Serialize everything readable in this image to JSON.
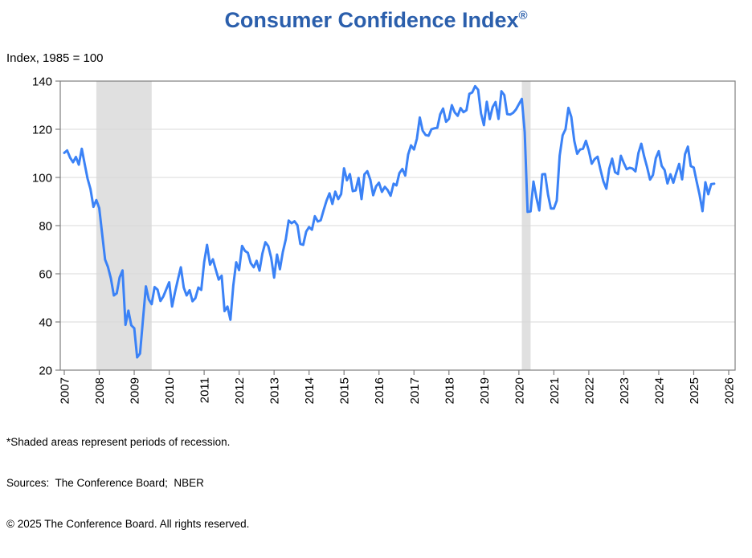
{
  "title": {
    "text": "Consumer Confidence Index",
    "registered_mark": "®"
  },
  "y_axis_caption": "Index, 1985 = 100",
  "footnotes": [
    "*Shaded areas represent periods of recession.",
    "Sources:  The Conference Board;  NBER",
    "© 2025 The Conference Board. All rights reserved."
  ],
  "colors": {
    "title": "#2B5FAC",
    "line": "#3B82F6",
    "gridline": "#D9D9D9",
    "axis": "#7F7F7F",
    "recession_band": "#E0E0E0",
    "text": "#000000"
  },
  "chart_data": {
    "type": "line",
    "title": "Consumer Confidence Index®",
    "xlabel": "",
    "ylabel": "Index, 1985 = 100",
    "ylim": [
      20,
      140
    ],
    "y_ticks": [
      20,
      40,
      60,
      80,
      100,
      120,
      140
    ],
    "x_ticks": [
      2007,
      2008,
      2009,
      2010,
      2011,
      2012,
      2013,
      2014,
      2015,
      2016,
      2017,
      2018,
      2019,
      2020,
      2021,
      2022,
      2023,
      2024,
      2025,
      2026
    ],
    "grid": true,
    "legend": false,
    "frequency": "monthly",
    "start": "2007-01",
    "end": "2025-08",
    "recession_bands": [
      {
        "from": "2007-12",
        "to": "2009-06"
      },
      {
        "from": "2020-02",
        "to": "2020-04"
      }
    ],
    "series": [
      {
        "name": "Consumer Confidence Index",
        "values": [
          110.2,
          111.2,
          108.2,
          106.3,
          108.5,
          105.3,
          111.9,
          105.6,
          99.5,
          95.2,
          87.8,
          90.6,
          87.3,
          76.4,
          65.9,
          62.8,
          58.1,
          51.0,
          51.9,
          58.5,
          61.4,
          38.8,
          44.7,
          38.6,
          37.4,
          25.3,
          26.9,
          40.8,
          54.8,
          49.3,
          47.4,
          54.5,
          53.4,
          48.7,
          50.6,
          53.6,
          56.5,
          46.4,
          52.3,
          57.7,
          62.7,
          54.3,
          51.0,
          53.2,
          48.6,
          49.9,
          54.3,
          53.3,
          64.8,
          72.0,
          63.8,
          66.0,
          61.7,
          57.6,
          59.2,
          44.5,
          46.4,
          40.9,
          55.2,
          64.8,
          61.5,
          71.6,
          69.5,
          68.7,
          64.4,
          62.7,
          65.4,
          61.3,
          68.4,
          73.1,
          71.5,
          66.7,
          58.4,
          68.0,
          61.9,
          69.0,
          74.3,
          82.1,
          81.0,
          81.8,
          80.2,
          72.4,
          72.0,
          77.5,
          79.4,
          78.3,
          83.9,
          81.7,
          82.2,
          86.4,
          90.3,
          93.4,
          89.0,
          94.1,
          91.0,
          93.1,
          103.8,
          98.8,
          101.4,
          94.3,
          94.6,
          99.8,
          91.0,
          101.3,
          102.6,
          99.1,
          92.6,
          96.3,
          97.8,
          94.0,
          96.1,
          94.7,
          92.4,
          97.4,
          96.7,
          101.8,
          103.5,
          100.8,
          109.5,
          113.3,
          111.6,
          116.1,
          124.9,
          119.4,
          117.6,
          117.3,
          120.0,
          120.4,
          120.6,
          126.2,
          128.6,
          123.1,
          124.3,
          130.0,
          127.0,
          125.6,
          128.8,
          127.1,
          127.9,
          134.7,
          135.3,
          137.9,
          136.4,
          126.6,
          121.7,
          131.4,
          124.2,
          129.2,
          131.3,
          124.3,
          135.8,
          134.2,
          126.3,
          126.1,
          126.8,
          128.2,
          130.4,
          132.6,
          118.8,
          85.7,
          85.9,
          98.3,
          91.7,
          86.3,
          101.3,
          101.4,
          92.9,
          87.1,
          87.1,
          90.4,
          109.0,
          117.5,
          120.0,
          128.9,
          125.1,
          115.2,
          109.8,
          111.6,
          111.9,
          115.2,
          111.1,
          105.7,
          107.6,
          108.6,
          103.2,
          98.4,
          95.3,
          103.6,
          107.8,
          102.2,
          101.4,
          109.0,
          106.0,
          103.4,
          104.0,
          103.7,
          102.5,
          110.1,
          114.0,
          108.7,
          104.3,
          99.1,
          101.0,
          108.0,
          110.9,
          104.8,
          103.1,
          97.5,
          101.3,
          97.8,
          101.9,
          105.6,
          99.2,
          109.6,
          112.8,
          104.7,
          104.1,
          98.3,
          92.9,
          86.0,
          98.0,
          93.0,
          97.2,
          97.4
        ]
      }
    ]
  }
}
